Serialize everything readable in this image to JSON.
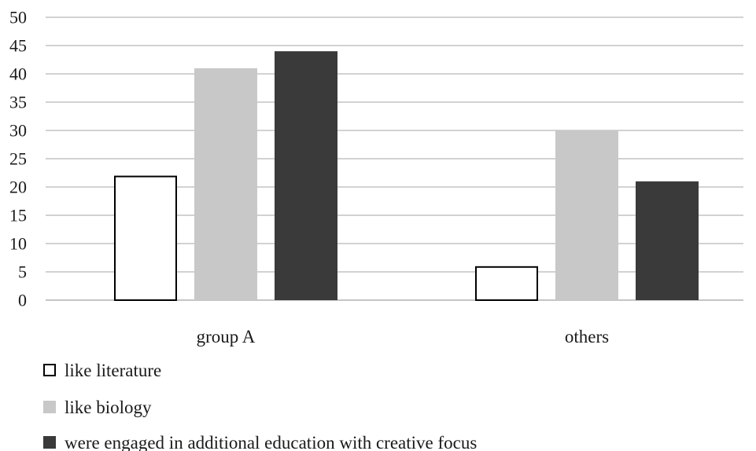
{
  "chart_data": {
    "type": "bar",
    "categories": [
      "group A",
      "others"
    ],
    "series": [
      {
        "name": "like literature",
        "values": [
          22,
          6
        ],
        "color": "#ffffff",
        "stroke": "#000000"
      },
      {
        "name": "like biology",
        "values": [
          41,
          30
        ],
        "color": "#c8c8c8",
        "stroke": "#c8c8c8"
      },
      {
        "name": "were engaged in additional education with creative focus",
        "values": [
          44,
          21
        ],
        "color": "#3a3a3a",
        "stroke": "#3a3a3a"
      }
    ],
    "ylim": [
      0,
      50
    ],
    "yticks": [
      0,
      5,
      10,
      15,
      20,
      25,
      30,
      35,
      40,
      45,
      50
    ],
    "grid": true,
    "legend_position": "bottom-left"
  }
}
